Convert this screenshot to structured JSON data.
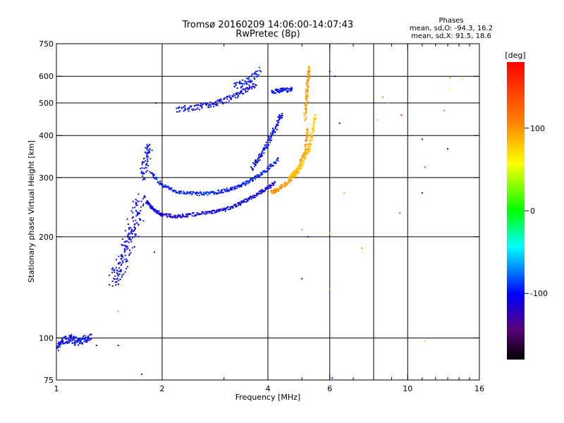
{
  "chart_data": {
    "type": "scatter",
    "title": "Tromsø 20160209 14:06:00-14:07:43",
    "subtitle": "RwPretec (8p)",
    "xlabel": "Frequency [MHz]",
    "ylabel": "Stationary phase Virtual Height [km]",
    "x_scale": "log",
    "y_scale": "log",
    "xlim": [
      1,
      16
    ],
    "ylim": [
      75,
      750
    ],
    "x_ticks": [
      1,
      2,
      4,
      6,
      10,
      16
    ],
    "x_tick_labels": [
      "1",
      "2",
      "4",
      "6",
      "10",
      "16"
    ],
    "x_grid": [
      2,
      4,
      6,
      8,
      10
    ],
    "x_minor": [
      3,
      5,
      7,
      9,
      11,
      12,
      13,
      14,
      15
    ],
    "y_ticks": [
      75,
      100,
      200,
      300,
      400,
      500,
      600,
      750
    ],
    "y_tick_labels": [
      "75",
      "100",
      "200",
      "300",
      "400",
      "500",
      "600",
      "750"
    ],
    "y_grid": [
      100,
      200,
      300,
      400,
      500,
      600
    ],
    "grid": true,
    "legend": {
      "title": "Phases",
      "lines": [
        "mean, sd,O: -94.3, 16.2",
        "mean, sd,X:  91.5, 18.6"
      ],
      "placement": "top-right"
    },
    "colorbar": {
      "label": "[deg]",
      "range": [
        -180,
        180
      ],
      "ticks": [
        100,
        0,
        -100
      ],
      "tick_labels": [
        "100",
        "0",
        "-100"
      ]
    },
    "traces": [
      {
        "x": [
          1.0,
          1.05,
          1.1,
          1.15,
          1.2,
          1.25
        ],
        "y": [
          93,
          98,
          100,
          97,
          99,
          101
        ],
        "phase": -100,
        "spread": 0.025
      },
      {
        "x": [
          1.45,
          1.5,
          1.55,
          1.6,
          1.65,
          1.7,
          1.75
        ],
        "y": [
          148,
          160,
          175,
          190,
          210,
          235,
          260
        ],
        "phase": -105,
        "spread": 0.09
      },
      {
        "x": [
          1.75,
          1.8,
          1.85
        ],
        "y": [
          300,
          340,
          370
        ],
        "phase": -100,
        "spread": 0.05
      },
      {
        "x": [
          1.8,
          1.9,
          2.0,
          2.2,
          2.4,
          2.7,
          3.0,
          3.3,
          3.6,
          3.9,
          4.2
        ],
        "y": [
          255,
          240,
          232,
          230,
          232,
          236,
          240,
          250,
          262,
          275,
          290
        ],
        "phase": -110,
        "spread": 0.012
      },
      {
        "x": [
          1.85,
          2.0,
          2.2,
          2.5,
          2.8,
          3.1,
          3.4,
          3.7,
          4.0,
          4.3
        ],
        "y": [
          310,
          285,
          272,
          268,
          270,
          276,
          286,
          300,
          318,
          340
        ],
        "phase": -95,
        "spread": 0.012
      },
      {
        "x": [
          3.6,
          3.8,
          4.0,
          4.2,
          4.4
        ],
        "y": [
          320,
          345,
          380,
          420,
          470
        ],
        "phase": -100,
        "spread": 0.02
      },
      {
        "x": [
          4.1,
          4.3,
          4.6,
          4.9,
          5.1,
          5.2
        ],
        "y": [
          270,
          278,
          292,
          320,
          360,
          420
        ],
        "phase": 100,
        "spread": 0.015
      },
      {
        "x": [
          4.6,
          4.8,
          5.0,
          5.2,
          5.35,
          5.45
        ],
        "y": [
          300,
          310,
          330,
          360,
          400,
          460
        ],
        "phase": 85,
        "spread": 0.02
      },
      {
        "x": [
          5.1,
          5.15,
          5.2,
          5.25
        ],
        "y": [
          450,
          520,
          580,
          640
        ],
        "phase": 100,
        "spread": 0.02
      },
      {
        "x": [
          2.2,
          2.5,
          2.8,
          3.1,
          3.4,
          3.7
        ],
        "y": [
          478,
          485,
          495,
          515,
          540,
          570
        ],
        "phase": -105,
        "spread": 0.02
      },
      {
        "x": [
          3.2,
          3.5,
          3.8
        ],
        "y": [
          560,
          580,
          620
        ],
        "phase": -95,
        "spread": 0.03
      },
      {
        "x": [
          4.1,
          4.4,
          4.7
        ],
        "y": [
          540,
          545,
          548
        ],
        "phase": -100,
        "spread": 0.015
      }
    ],
    "scattered_points": [
      {
        "x": 1.3,
        "y": 95,
        "phase": -100
      },
      {
        "x": 1.5,
        "y": 95,
        "phase": -100
      },
      {
        "x": 1.5,
        "y": 120,
        "phase": 100
      },
      {
        "x": 1.75,
        "y": 78,
        "phase": -100
      },
      {
        "x": 1.9,
        "y": 180,
        "phase": -100
      },
      {
        "x": 1.92,
        "y": 500,
        "phase": -100
      },
      {
        "x": 5.0,
        "y": 210,
        "phase": 100
      },
      {
        "x": 5.2,
        "y": 200,
        "phase": -100
      },
      {
        "x": 5.0,
        "y": 150,
        "phase": -100
      },
      {
        "x": 6.0,
        "y": 205,
        "phase": 30
      },
      {
        "x": 6.0,
        "y": 140,
        "phase": 100
      },
      {
        "x": 6.1,
        "y": 76,
        "phase": -100
      },
      {
        "x": 6.4,
        "y": 435,
        "phase": -100
      },
      {
        "x": 6.6,
        "y": 270,
        "phase": 100
      },
      {
        "x": 7.4,
        "y": 185,
        "phase": 100
      },
      {
        "x": 8.2,
        "y": 445,
        "phase": 30
      },
      {
        "x": 8.5,
        "y": 520,
        "phase": 110
      },
      {
        "x": 8.8,
        "y": 500,
        "phase": 30
      },
      {
        "x": 9.6,
        "y": 460,
        "phase": 160
      },
      {
        "x": 9.5,
        "y": 235,
        "phase": 150
      },
      {
        "x": 11.0,
        "y": 390,
        "phase": -100
      },
      {
        "x": 11.2,
        "y": 322,
        "phase": 150
      },
      {
        "x": 11.0,
        "y": 270,
        "phase": -100
      },
      {
        "x": 11.2,
        "y": 98,
        "phase": 30
      },
      {
        "x": 12.7,
        "y": 475,
        "phase": 110
      },
      {
        "x": 13.0,
        "y": 365,
        "phase": -100
      },
      {
        "x": 13.2,
        "y": 550,
        "phase": 60
      },
      {
        "x": 13.2,
        "y": 595,
        "phase": 100
      },
      {
        "x": 14.3,
        "y": 590,
        "phase": 40
      },
      {
        "x": 6.2,
        "y": 600,
        "phase": -100
      },
      {
        "x": 6.0,
        "y": 620,
        "phase": -100
      }
    ]
  }
}
